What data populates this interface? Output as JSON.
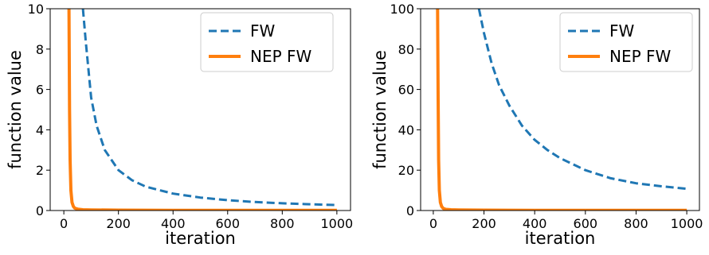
{
  "chart_data": [
    {
      "type": "line",
      "xlabel": "iteration",
      "ylabel": "function value",
      "xlim": [
        -50,
        1050
      ],
      "ylim": [
        0,
        10
      ],
      "xticks": [
        0,
        200,
        400,
        600,
        800,
        1000
      ],
      "yticks": [
        0,
        2,
        4,
        6,
        8,
        10
      ],
      "grid": false,
      "legend_position": "top-right",
      "series": [
        {
          "name": "FW",
          "style": "dashed",
          "color": "#1f77b4",
          "x": [
            70,
            80,
            100,
            120,
            150,
            200,
            250,
            300,
            400,
            500,
            600,
            700,
            800,
            900,
            1000
          ],
          "y": [
            10.0,
            8.4,
            5.6,
            4.2,
            3.0,
            2.0,
            1.5,
            1.18,
            0.84,
            0.64,
            0.51,
            0.42,
            0.36,
            0.31,
            0.27
          ]
        },
        {
          "name": "NEP FW",
          "style": "solid",
          "color": "#ff7f0e",
          "x": [
            19,
            21,
            23,
            26,
            30,
            35,
            40,
            50,
            70,
            100,
            200,
            400,
            600,
            800,
            1000
          ],
          "y": [
            10.0,
            5.0,
            2.5,
            1.0,
            0.4,
            0.2,
            0.12,
            0.07,
            0.04,
            0.03,
            0.02,
            0.01,
            0.01,
            0.01,
            0.01
          ]
        }
      ]
    },
    {
      "type": "line",
      "xlabel": "iteration",
      "ylabel": "function value",
      "xlim": [
        -50,
        1050
      ],
      "ylim": [
        0,
        100
      ],
      "xticks": [
        0,
        200,
        400,
        600,
        800,
        1000
      ],
      "yticks": [
        0,
        20,
        40,
        60,
        80,
        100
      ],
      "grid": false,
      "legend_position": "top-right",
      "series": [
        {
          "name": "FW",
          "style": "dashed",
          "color": "#1f77b4",
          "x": [
            180,
            200,
            230,
            260,
            300,
            350,
            400,
            450,
            500,
            600,
            700,
            800,
            900,
            1000
          ],
          "y": [
            100,
            88,
            73,
            62,
            52,
            42,
            35,
            30,
            26,
            20,
            16,
            13.5,
            12.0,
            10.8
          ]
        },
        {
          "name": "NEP FW",
          "style": "solid",
          "color": "#ff7f0e",
          "x": [
            17,
            19,
            21,
            24,
            28,
            33,
            40,
            50,
            70,
            100,
            200,
            400,
            600,
            800,
            1000
          ],
          "y": [
            100,
            55,
            25,
            10,
            4,
            2,
            1,
            0.6,
            0.4,
            0.3,
            0.2,
            0.1,
            0.1,
            0.1,
            0.1
          ]
        }
      ]
    }
  ],
  "colors": {
    "fw": "#1f77b4",
    "nep": "#ff7f0e",
    "axis": "#000000"
  }
}
